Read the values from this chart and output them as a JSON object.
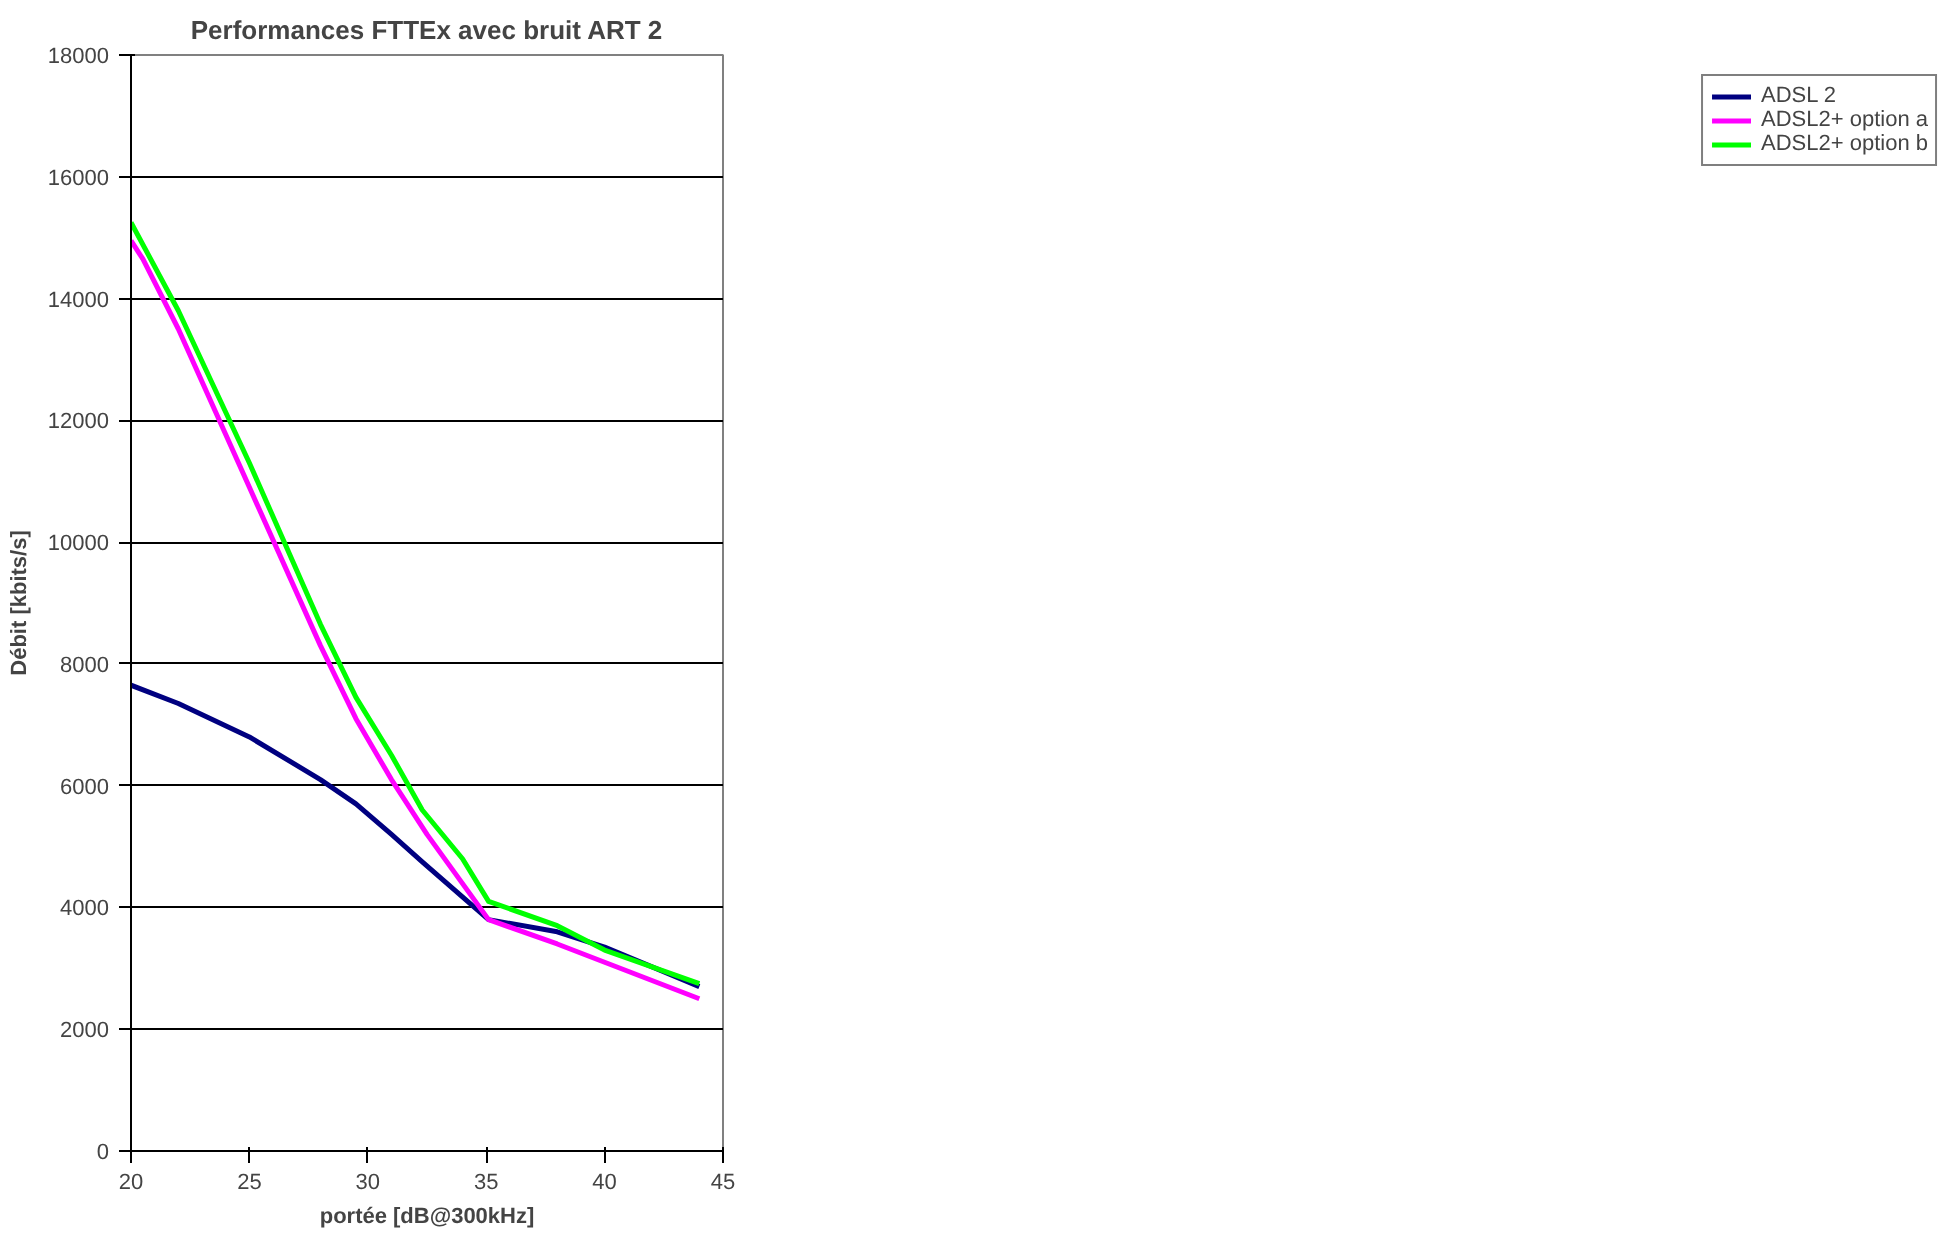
{
  "chart_data": {
    "type": "line",
    "title": "Performances FTTEx avec bruit ART 2",
    "xlabel": "portée [dB@300kHz]",
    "ylabel": "Débit [kbits/s]",
    "xlim": [
      20,
      45
    ],
    "xticks": [
      20,
      25,
      30,
      35,
      40,
      45
    ],
    "ylim": [
      0,
      18000
    ],
    "yticks": [
      0,
      2000,
      4000,
      6000,
      8000,
      10000,
      12000,
      14000,
      16000,
      18000
    ],
    "grid": "y",
    "legend": "right",
    "marker": "none",
    "line_style": "solid",
    "series": [
      {
        "name": "ADSL 2",
        "color": "#000080",
        "x": [
          20,
          22,
          25,
          28,
          29.5,
          31,
          32.3,
          35.1,
          38,
          40,
          44
        ],
        "values": [
          7650,
          7350,
          6800,
          6100,
          5700,
          5200,
          4750,
          3800,
          3600,
          3350,
          2700
        ]
      },
      {
        "name": "ADSL2+ option a",
        "color": "#ff00ff",
        "x": [
          20,
          20.5,
          22,
          25,
          28,
          29.5,
          31,
          32.5,
          35.1,
          38,
          40,
          44
        ],
        "values": [
          14950,
          14650,
          13500,
          10900,
          8300,
          7100,
          6100,
          5200,
          3800,
          3400,
          3100,
          2500
        ]
      },
      {
        "name": "ADSL2+ option b",
        "color": "#00ff00",
        "x": [
          20,
          22,
          25,
          28,
          29.5,
          31,
          32.3,
          34,
          35.1,
          38,
          40,
          44
        ],
        "values": [
          15250,
          13800,
          11300,
          8650,
          7450,
          6500,
          5600,
          4800,
          4100,
          3700,
          3300,
          2750
        ]
      }
    ]
  }
}
